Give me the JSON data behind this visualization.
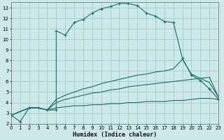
{
  "xlabel": "Humidex (Indice chaleur)",
  "xlim": [
    0,
    23
  ],
  "ylim": [
    2,
    13.5
  ],
  "xticks": [
    0,
    1,
    2,
    3,
    4,
    5,
    6,
    7,
    8,
    9,
    10,
    11,
    12,
    13,
    14,
    15,
    16,
    17,
    18,
    19,
    20,
    21,
    22,
    23
  ],
  "yticks": [
    2,
    3,
    4,
    5,
    6,
    7,
    8,
    9,
    10,
    11,
    12,
    13
  ],
  "bg_color": "#cce8e8",
  "grid_color": "#a0cccc",
  "line_color": "#1a6b6b",
  "line1_x": [
    0,
    1,
    2,
    3,
    4,
    5,
    5,
    6,
    7,
    8,
    9,
    10,
    11,
    12,
    13,
    14,
    15,
    16,
    17,
    18,
    19,
    20,
    21,
    22,
    23
  ],
  "line1_y": [
    2.8,
    2.2,
    3.5,
    3.5,
    3.3,
    3.3,
    10.8,
    10.4,
    11.6,
    11.9,
    12.5,
    12.9,
    13.1,
    13.4,
    13.4,
    13.2,
    12.5,
    12.2,
    11.7,
    11.6,
    8.2,
    6.6,
    6.1,
    5.3,
    4.3
  ],
  "line2_x": [
    0,
    2,
    3,
    4,
    5,
    6,
    7,
    8,
    9,
    10,
    11,
    12,
    13,
    14,
    15,
    16,
    17,
    18,
    19,
    20,
    21,
    22,
    23
  ],
  "line2_y": [
    2.8,
    3.5,
    3.5,
    3.3,
    4.3,
    4.7,
    5.0,
    5.3,
    5.5,
    5.8,
    6.0,
    6.2,
    6.4,
    6.6,
    6.7,
    6.9,
    7.0,
    7.2,
    8.1,
    6.7,
    6.3,
    5.9,
    4.5
  ],
  "line3_x": [
    0,
    2,
    3,
    4,
    5,
    6,
    7,
    8,
    9,
    10,
    11,
    12,
    13,
    14,
    15,
    16,
    17,
    18,
    19,
    20,
    21,
    22,
    23
  ],
  "line3_y": [
    2.8,
    3.5,
    3.5,
    3.3,
    4.0,
    4.3,
    4.5,
    4.7,
    4.9,
    5.0,
    5.2,
    5.3,
    5.5,
    5.6,
    5.7,
    5.8,
    5.9,
    6.0,
    6.1,
    6.2,
    6.3,
    6.4,
    4.5
  ],
  "line4_x": [
    0,
    2,
    3,
    4,
    5,
    6,
    7,
    8,
    9,
    10,
    11,
    12,
    13,
    14,
    15,
    16,
    17,
    18,
    19,
    20,
    21,
    22,
    23
  ],
  "line4_y": [
    2.8,
    3.5,
    3.5,
    3.3,
    3.5,
    3.6,
    3.7,
    3.7,
    3.8,
    3.8,
    3.9,
    3.9,
    4.0,
    4.0,
    4.1,
    4.1,
    4.1,
    4.2,
    4.2,
    4.3,
    4.4,
    4.4,
    4.3
  ]
}
